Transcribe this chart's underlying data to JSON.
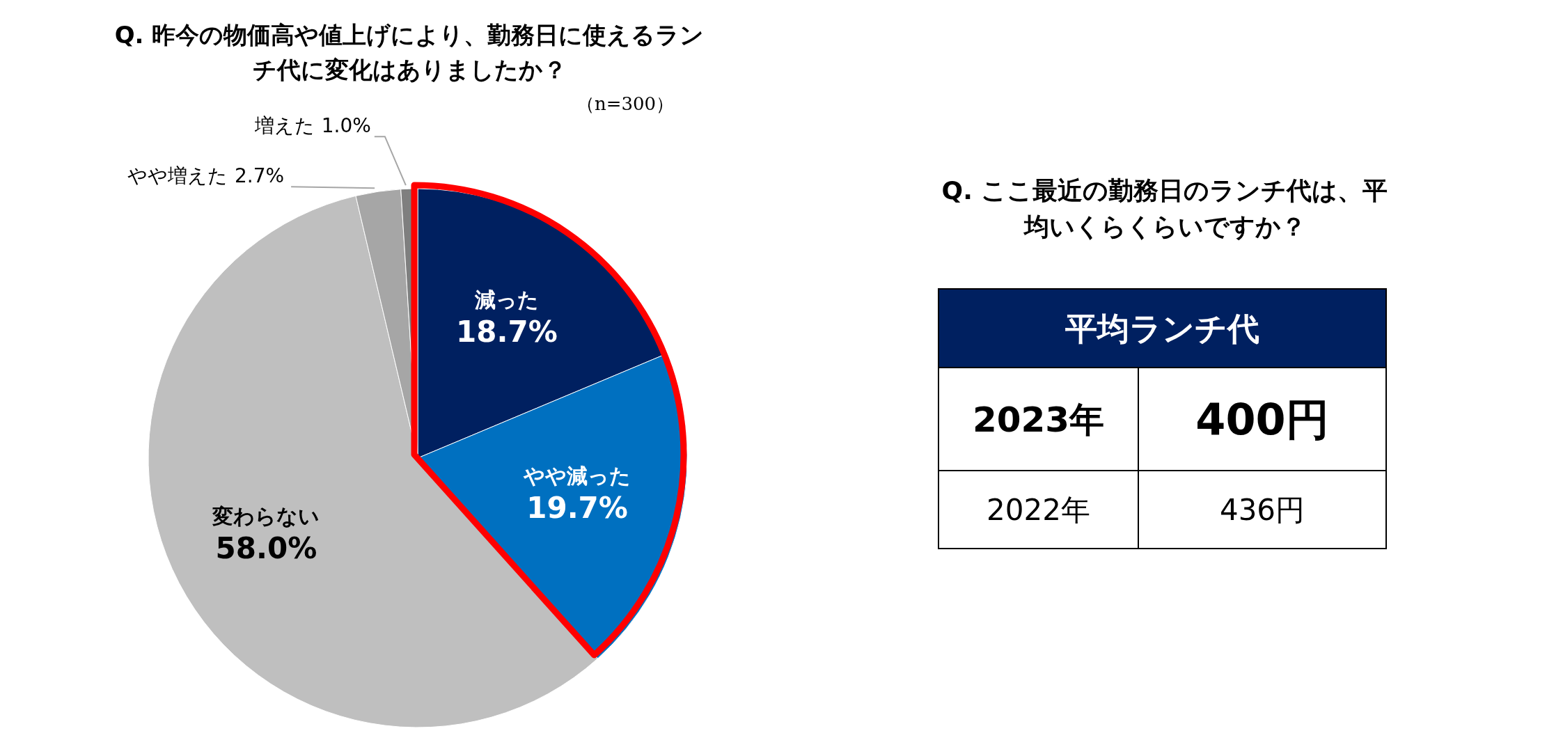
{
  "chart_data": [
    {
      "type": "pie",
      "title": "Q. 昨今の物価高や値上げにより、勤務日に使えるランチ代に変化はありましたか？",
      "subtitle": "（n=300）",
      "categories": [
        "減った",
        "やや減った",
        "変わらない",
        "やや増えた",
        "増えた"
      ],
      "values": [
        18.7,
        19.7,
        58.0,
        2.7,
        1.0
      ],
      "value_labels": [
        "18.7%",
        "19.7%",
        "58.0%",
        "2.7%",
        "1.0%"
      ],
      "colors": [
        "#002060",
        "#0070c0",
        "#bfbfbf",
        "#a6a6a6",
        "#7f7f7f"
      ]
    },
    {
      "type": "other",
      "title": "Q. ここ最近の勤務日のランチ代は、平均いくらくらいですか？",
      "annotations": [
        "平均ランチ代",
        "2023年",
        "400円",
        "2022年",
        "436円"
      ]
    }
  ]
}
